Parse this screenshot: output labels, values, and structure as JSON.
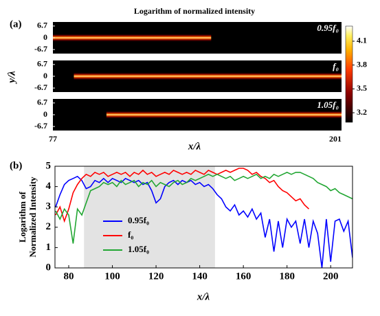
{
  "chart_data": [
    {
      "type": "heatmap",
      "panel_label": "(a)",
      "title": "Logarithm of normalized intensity",
      "xlabel": "x/λ",
      "ylabel": "y/λ",
      "xlim": [
        77,
        201
      ],
      "xticks": [
        77,
        201
      ],
      "ylim": [
        -9,
        9
      ],
      "yticks": [
        6.7,
        0,
        -6.7
      ],
      "panels": [
        {
          "label": "0.95f₀",
          "x_range": [
            77,
            145
          ]
        },
        {
          "label": "f₀",
          "x_range": [
            86,
            201
          ]
        },
        {
          "label": "1.05f₀",
          "x_range": [
            100,
            201
          ]
        }
      ],
      "clim": [
        3.08,
        4.29
      ],
      "cticks": [
        4.1,
        3.8,
        3.5,
        3.2
      ]
    },
    {
      "type": "line",
      "panel_label": "(b)",
      "xlabel": "x/λ",
      "ylabel": [
        "Logarithm of",
        "Normalized Intensity"
      ],
      "xlim": [
        73.7,
        210
      ],
      "xticks": [
        80,
        100,
        120,
        140,
        160,
        180,
        200
      ],
      "ylim": [
        0,
        5
      ],
      "yticks": [
        0,
        1,
        2,
        3,
        4,
        5
      ],
      "shaded_x": [
        87,
        147
      ],
      "x": [
        74,
        76,
        78,
        80,
        82,
        84,
        86,
        88,
        90,
        92,
        94,
        96,
        98,
        100,
        102,
        104,
        106,
        108,
        110,
        112,
        114,
        116,
        118,
        120,
        122,
        124,
        126,
        128,
        130,
        132,
        134,
        136,
        138,
        140,
        142,
        144,
        146,
        148,
        150,
        152,
        154,
        156,
        158,
        160,
        162,
        164,
        166,
        168,
        170,
        172,
        174,
        176,
        178,
        180,
        182,
        184,
        186,
        188,
        190,
        192,
        194,
        196,
        198,
        200,
        202,
        204,
        206,
        208,
        210
      ],
      "series": [
        {
          "name": "0.95f₀",
          "color": "#0000ff",
          "values": [
            3.0,
            3.6,
            4.1,
            4.3,
            4.4,
            4.5,
            4.3,
            3.9,
            4.0,
            4.3,
            4.2,
            4.4,
            4.2,
            4.4,
            4.3,
            4.2,
            4.4,
            4.3,
            4.2,
            4.3,
            4.1,
            4.2,
            3.8,
            3.2,
            3.4,
            4.0,
            4.2,
            4.3,
            4.1,
            4.3,
            4.2,
            4.3,
            4.1,
            4.2,
            4.0,
            4.1,
            3.9,
            3.6,
            3.4,
            3.0,
            2.8,
            3.1,
            2.6,
            2.8,
            2.5,
            2.9,
            2.4,
            2.7,
            1.5,
            2.4,
            0.8,
            2.3,
            1.0,
            2.4,
            2.0,
            2.3,
            1.2,
            2.4,
            1.0,
            2.3,
            1.7,
            0.0,
            2.4,
            0.3,
            2.3,
            2.4,
            1.8,
            2.3,
            0.5
          ]
        },
        {
          "name": "f₀",
          "color": "#ff0000",
          "values": [
            2.6,
            3.0,
            2.3,
            2.9,
            3.7,
            4.1,
            4.4,
            4.6,
            4.5,
            4.7,
            4.6,
            4.7,
            4.5,
            4.6,
            4.7,
            4.6,
            4.7,
            4.5,
            4.7,
            4.6,
            4.8,
            4.6,
            4.7,
            4.5,
            4.6,
            4.7,
            4.6,
            4.8,
            4.7,
            4.6,
            4.7,
            4.6,
            4.8,
            4.7,
            4.6,
            4.8,
            4.7,
            4.6,
            4.7,
            4.8,
            4.7,
            4.8,
            4.9,
            4.9,
            4.8,
            4.6,
            4.7,
            4.5,
            4.4,
            4.2,
            4.3,
            4.0,
            3.8,
            3.7,
            3.5,
            3.3,
            3.4,
            3.1,
            2.9,
            null,
            null,
            null,
            null,
            null,
            null,
            null,
            null,
            null,
            null
          ]
        },
        {
          "name": "1.05f₀",
          "color": "#21a632",
          "values": [
            2.8,
            2.4,
            2.9,
            2.6,
            1.2,
            2.9,
            2.6,
            3.2,
            3.8,
            3.9,
            4.0,
            4.2,
            4.1,
            4.2,
            4.0,
            4.3,
            4.1,
            4.2,
            4.3,
            4.0,
            4.2,
            4.1,
            4.3,
            4.0,
            4.2,
            4.1,
            4.0,
            4.2,
            4.3,
            4.1,
            4.2,
            4.4,
            4.3,
            4.4,
            4.5,
            4.6,
            4.5,
            4.6,
            4.5,
            4.4,
            4.5,
            4.3,
            4.4,
            4.5,
            4.4,
            4.5,
            4.6,
            4.4,
            4.5,
            4.4,
            4.6,
            4.5,
            4.6,
            4.7,
            4.6,
            4.7,
            4.7,
            4.6,
            4.5,
            4.4,
            4.2,
            4.1,
            4.0,
            3.8,
            3.9,
            3.7,
            3.6,
            3.5,
            3.4
          ]
        }
      ]
    }
  ]
}
